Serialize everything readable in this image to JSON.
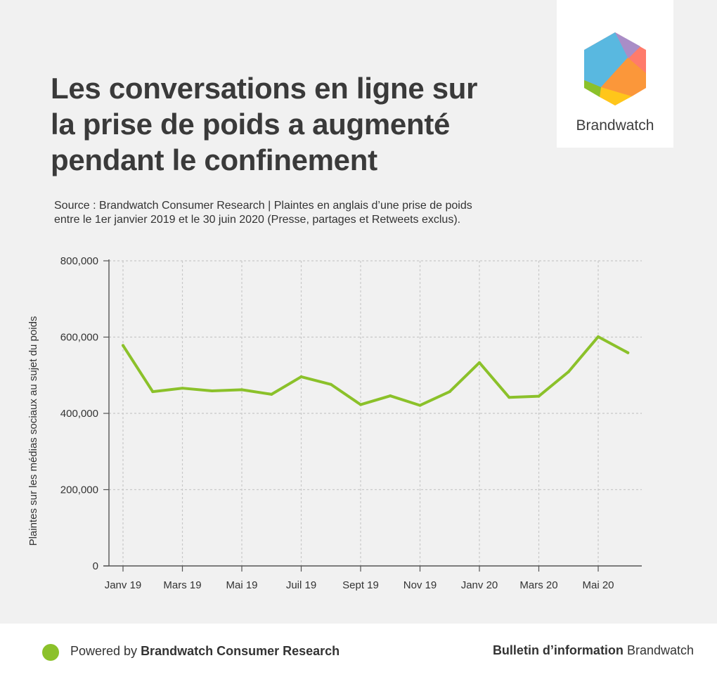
{
  "title_lines": [
    "Les conversations en ligne sur",
    "la prise de poids a augmenté",
    "pendant le confinement"
  ],
  "source_lines": [
    "Source : Brandwatch Consumer Research | Plaintes en anglais d’une prise de poids",
    "entre le 1er janvier 2019 et le 30 juin 2020 (Presse, partages et Retweets exclus)."
  ],
  "logo": {
    "text": "Brandwatch"
  },
  "colors": {
    "line": "#8bc12a",
    "accent": "#8bc12a",
    "grid": "#c8c8c8",
    "axis": "#555555",
    "background": "#f1f1f1"
  },
  "chart_data": {
    "type": "line",
    "title": "",
    "xlabel": "",
    "ylabel": "Plaintes sur les médias sociaux au sujet du poids",
    "ylim": [
      0,
      800000
    ],
    "yticks": [
      0,
      200000,
      400000,
      600000,
      800000
    ],
    "ytick_labels": [
      "0",
      "200,000",
      "400,000",
      "600,000",
      "800,000"
    ],
    "x_tick_indices": [
      0,
      2,
      4,
      6,
      8,
      10,
      12,
      14,
      16
    ],
    "x_tick_labels": [
      "Janv 19",
      "Mars 19",
      "Mai 19",
      "Juil 19",
      "Sept 19",
      "Nov 19",
      "Janv 20",
      "Mars 20",
      "Mai 20"
    ],
    "grid": true,
    "series": [
      {
        "name": "Plaintes",
        "months": [
          "2019-01",
          "2019-02",
          "2019-03",
          "2019-04",
          "2019-05",
          "2019-06",
          "2019-07",
          "2019-08",
          "2019-09",
          "2019-10",
          "2019-11",
          "2019-12",
          "2020-01",
          "2020-02",
          "2020-03",
          "2020-04",
          "2020-05",
          "2020-06"
        ],
        "values": [
          578000,
          457000,
          466000,
          459000,
          462000,
          450000,
          496000,
          476000,
          423000,
          446000,
          421000,
          457000,
          533000,
          442000,
          445000,
          509000,
          601000,
          559000
        ]
      }
    ]
  },
  "footer": {
    "powered_prefix": "Powered by ",
    "powered_bold": "Brandwatch Consumer Research",
    "bulletin_bold": "Bulletin d’information",
    "bulletin_rest": " Brandwatch"
  }
}
